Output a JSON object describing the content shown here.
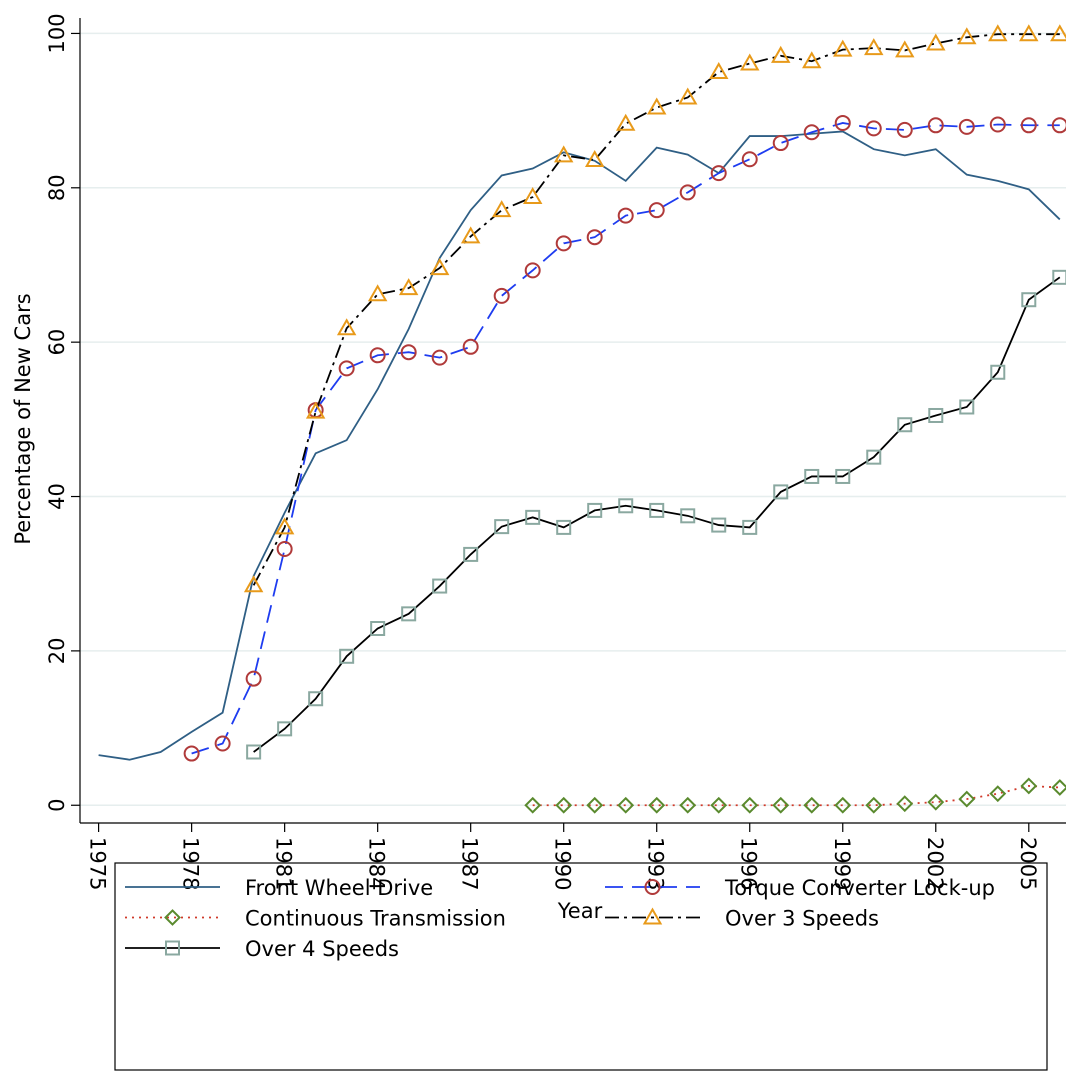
{
  "chart_data": {
    "type": "line",
    "x_label": "Year",
    "y_label": "Percentage of New Cars",
    "x": [
      1975,
      1976,
      1977,
      1978,
      1979,
      1980,
      1981,
      1982,
      1983,
      1984,
      1985,
      1986,
      1987,
      1988,
      1989,
      1990,
      1991,
      1992,
      1993,
      1994,
      1995,
      1996,
      1997,
      1998,
      1999,
      2000,
      2001,
      2002,
      2003,
      2004,
      2005,
      2006
    ],
    "xlim": [
      1974.4,
      2006.2
    ],
    "xticks": [
      1975,
      1978,
      1981,
      1984,
      1987,
      1990,
      1993,
      1996,
      1999,
      2002,
      2005
    ],
    "ylim": [
      -2.3,
      102
    ],
    "yticks": [
      0,
      20,
      40,
      60,
      80,
      100
    ],
    "grid": true,
    "legend": "bottom",
    "series": [
      {
        "name": "Front Wheel Drive",
        "color": "#2f5f85",
        "dash": "none",
        "marker": "none",
        "marker_color": "none",
        "values": [
          6.5,
          5.9,
          6.9,
          9.5,
          12,
          29.7,
          37.9,
          45.6,
          47.3,
          53.9,
          61.7,
          70.9,
          77.1,
          81.6,
          82.5,
          84.6,
          83.5,
          80.9,
          85.2,
          84.3,
          81.9,
          86.7,
          86.7,
          87.0,
          87.3,
          85.0,
          84.2,
          85.0,
          81.7,
          80.9,
          79.8,
          75.9
        ]
      },
      {
        "name": "Torque Converter Lock-up",
        "color": "#1e3cf0",
        "dash": "18 9",
        "marker": "circle",
        "marker_color": "#b03a3a",
        "values": [
          null,
          null,
          null,
          6.7,
          8.0,
          16.4,
          33.2,
          51.2,
          56.6,
          58.3,
          58.7,
          58.0,
          59.4,
          66.0,
          69.3,
          72.8,
          73.6,
          76.4,
          77.1,
          79.4,
          81.9,
          83.7,
          85.8,
          87.2,
          88.4,
          87.7,
          87.5,
          88.1,
          87.9,
          88.2,
          88.1,
          88.1
        ]
      },
      {
        "name": "Continuous Transmission",
        "color": "#d03a2a",
        "dash": "2 5",
        "marker": "diamond",
        "marker_color": "#5a8a2e",
        "values": [
          null,
          null,
          null,
          null,
          null,
          null,
          null,
          null,
          null,
          null,
          null,
          null,
          null,
          null,
          0,
          0,
          0,
          0,
          0,
          0,
          0,
          0,
          0,
          0,
          0,
          0,
          0.2,
          0.4,
          0.8,
          1.5,
          2.5,
          2.3
        ]
      },
      {
        "name": "Over 3 Speeds",
        "color": "#000000",
        "dash": "14 5 3 5",
        "marker": "triangle",
        "marker_color": "#e89a1a",
        "values": [
          null,
          null,
          null,
          null,
          null,
          28.5,
          36.0,
          51.0,
          61.8,
          66.2,
          67.0,
          69.6,
          73.7,
          77.1,
          78.8,
          84.2,
          83.6,
          88.3,
          90.4,
          91.7,
          95.0,
          96.1,
          97.1,
          96.4,
          97.9,
          98.1,
          97.8,
          98.7,
          99.5,
          99.9,
          99.9,
          99.9
        ]
      },
      {
        "name": "Over 4 Speeds",
        "color": "#000000",
        "dash": "none",
        "marker": "square",
        "marker_color": "#8aa8a0",
        "values": [
          null,
          null,
          null,
          null,
          null,
          6.9,
          9.9,
          13.8,
          19.3,
          22.9,
          24.8,
          28.4,
          32.5,
          36.1,
          37.3,
          36.0,
          38.2,
          38.8,
          38.2,
          37.5,
          36.3,
          36.0,
          40.6,
          42.6,
          42.6,
          45.1,
          49.3,
          50.5,
          51.6,
          56.1,
          65.5,
          68.4
        ]
      }
    ]
  }
}
